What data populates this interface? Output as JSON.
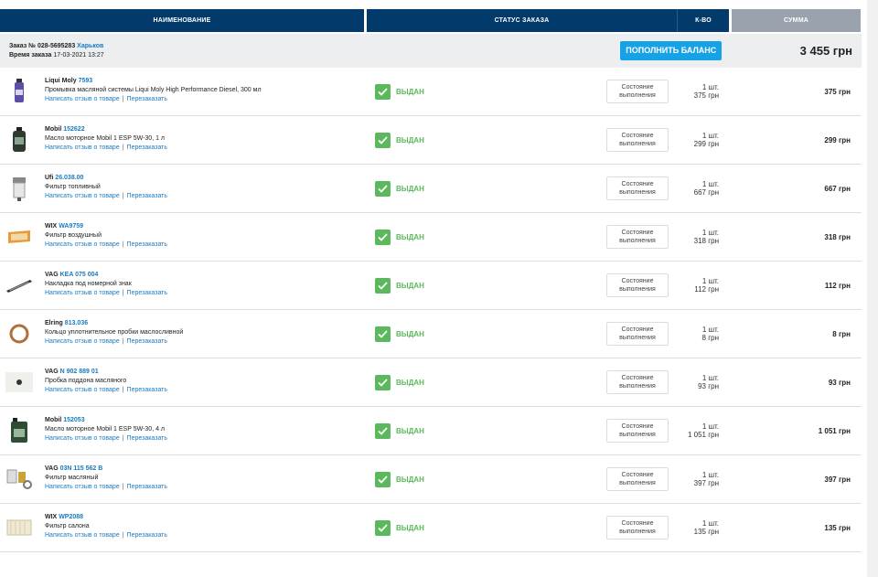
{
  "header": {
    "name": "НАИМЕНОВАНИЕ",
    "status": "СТАТУС ЗАКАЗА",
    "qty": "К-ВО",
    "sum": "СУММА"
  },
  "order": {
    "number_label": "Заказ №",
    "number": "028-5695283",
    "city": "Харьков",
    "time_label": "Время заказа",
    "time": "17-03-2021 13:27",
    "topup_label": "ПОПОЛНИТЬ БАЛАНС",
    "total": "3 455 грн"
  },
  "common": {
    "status_text": "ВЫДАН",
    "state_button": "Состояние выполнения",
    "review_link": "Написать отзыв о товаре",
    "separator": "|",
    "reorder_link": "Перезаказать"
  },
  "colors": {
    "header_bg": "#013a6b",
    "sum_header_bg": "#9aa3ad",
    "accent_blue": "#1a7bc2",
    "button_blue": "#17a2e8",
    "status_green": "#5cb85c"
  },
  "items": [
    {
      "brand": "Liqui Moly",
      "code": "7593",
      "desc": "Промывка масляной системы Liqui Moly High Performance Diesel, 300 мл",
      "qty": "1 шт.",
      "price": "375 грн",
      "sum": "375 грн",
      "icon": "bottle-icon"
    },
    {
      "brand": "Mobil",
      "code": "152622",
      "desc": "Масло моторное Mobil 1 ESP 5W-30, 1 л",
      "qty": "1 шт.",
      "price": "299 грн",
      "sum": "299 грн",
      "icon": "oil-can-icon"
    },
    {
      "brand": "Ufi",
      "code": "26.038.00",
      "desc": "Фильтр топливный",
      "qty": "1 шт.",
      "price": "667 грн",
      "sum": "667 грн",
      "icon": "fuel-filter-icon"
    },
    {
      "brand": "WIX",
      "code": "WA9759",
      "desc": "Фильтр воздушный",
      "qty": "1 шт.",
      "price": "318 грн",
      "sum": "318 грн",
      "icon": "air-filter-icon"
    },
    {
      "brand": "VAG",
      "code": "KEA 075 004",
      "desc": "Накладка под номерной знак",
      "qty": "1 шт.",
      "price": "112 грн",
      "sum": "112 грн",
      "icon": "plate-trim-icon"
    },
    {
      "brand": "Elring",
      "code": "813.036",
      "desc": "Кольцо уплотнительное пробки маслосливной",
      "qty": "1 шт.",
      "price": "8 грн",
      "sum": "8 грн",
      "icon": "seal-ring-icon"
    },
    {
      "brand": "VAG",
      "code": "N 902 889 01",
      "desc": "Пробка поддона масляного",
      "qty": "1 шт.",
      "price": "93 грн",
      "sum": "93 грн",
      "icon": "drain-plug-icon"
    },
    {
      "brand": "Mobil",
      "code": "152053",
      "desc": "Масло моторное Mobil 1 ESP 5W-30, 4 л",
      "qty": "1 шт.",
      "price": "1 051 грн",
      "sum": "1 051 грн",
      "icon": "oil-canister-icon"
    },
    {
      "brand": "VAG",
      "code": "03N 115 562 B",
      "desc": "Фильтр масляный",
      "qty": "1 шт.",
      "price": "397 грн",
      "sum": "397 грн",
      "icon": "oil-filter-icon"
    },
    {
      "brand": "WIX",
      "code": "WP2088",
      "desc": "Фильтр салона",
      "qty": "1 шт.",
      "price": "135 грн",
      "sum": "135 грн",
      "icon": "cabin-filter-icon"
    }
  ]
}
